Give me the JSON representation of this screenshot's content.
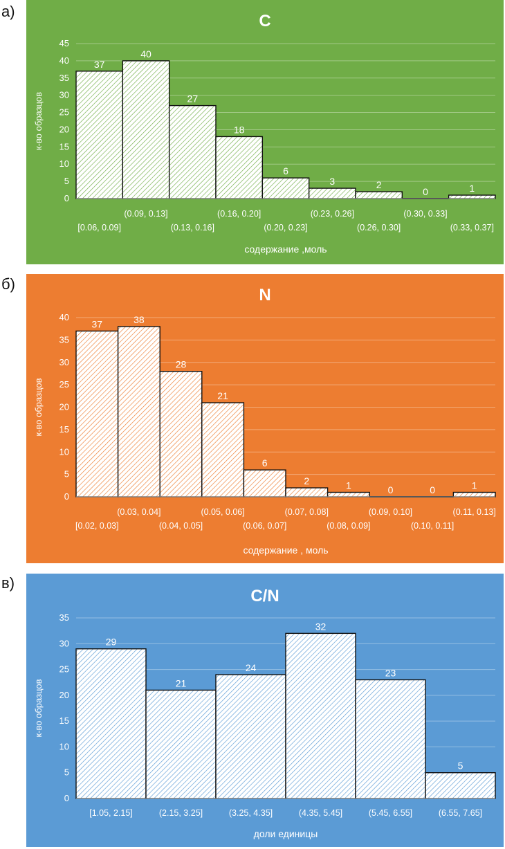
{
  "panels": [
    {
      "letter": "а)",
      "bg": "#70ad47",
      "chart_data": {
        "type": "bar",
        "title": "C",
        "xlabel": "содержание ,моль",
        "ylabel": "к-во образцов",
        "categories": [
          "[0.06, 0.09]",
          "(0.09, 0.13]",
          "(0.13, 0.16]",
          "(0.16, 0.20]",
          "(0.20, 0.23]",
          "(0.23, 0.26]",
          "(0.26, 0.30]",
          "(0.30, 0.33]",
          "(0.33, 0.37]"
        ],
        "values": [
          37,
          40,
          27,
          18,
          6,
          3,
          2,
          0,
          1
        ],
        "ylim": [
          0,
          45
        ],
        "yticks": [
          0,
          5,
          10,
          15,
          20,
          25,
          30,
          35,
          40,
          45
        ],
        "grid": true,
        "hatch_color": "#70ad47"
      }
    },
    {
      "letter": "б)",
      "bg": "#ed7d31",
      "chart_data": {
        "type": "bar",
        "title": "N",
        "xlabel": "содержание , моль",
        "ylabel": "к-во образцов",
        "categories": [
          "[0.02, 0.03]",
          "(0.03, 0.04]",
          "(0.04, 0.05]",
          "(0.05, 0.06]",
          "(0.06, 0.07]",
          "(0.07, 0.08]",
          "(0.08, 0.09]",
          "(0.09, 0.10]",
          "(0.10, 0.11]",
          "(0.11, 0.13]"
        ],
        "values": [
          37,
          38,
          28,
          21,
          6,
          2,
          1,
          0,
          0,
          1
        ],
        "ylim": [
          0,
          40
        ],
        "yticks": [
          0,
          5,
          10,
          15,
          20,
          25,
          30,
          35,
          40
        ],
        "grid": true,
        "hatch_color": "#ed7d31"
      }
    },
    {
      "letter": "в)",
      "bg": "#5b9bd5",
      "chart_data": {
        "type": "bar",
        "title": "C/N",
        "xlabel": "доли единицы",
        "ylabel": "к-во образцов",
        "categories": [
          "[1.05, 2.15]",
          "(2.15, 3.25]",
          "(3.25, 4.35]",
          "(4.35, 5.45]",
          "(5.45, 6.55]",
          "(6.55, 7.65]"
        ],
        "values": [
          29,
          21,
          24,
          32,
          23,
          5
        ],
        "ylim": [
          0,
          35
        ],
        "yticks": [
          0,
          5,
          10,
          15,
          20,
          25,
          30,
          35
        ],
        "grid": true,
        "hatch_color": "#5b9bd5"
      }
    }
  ]
}
